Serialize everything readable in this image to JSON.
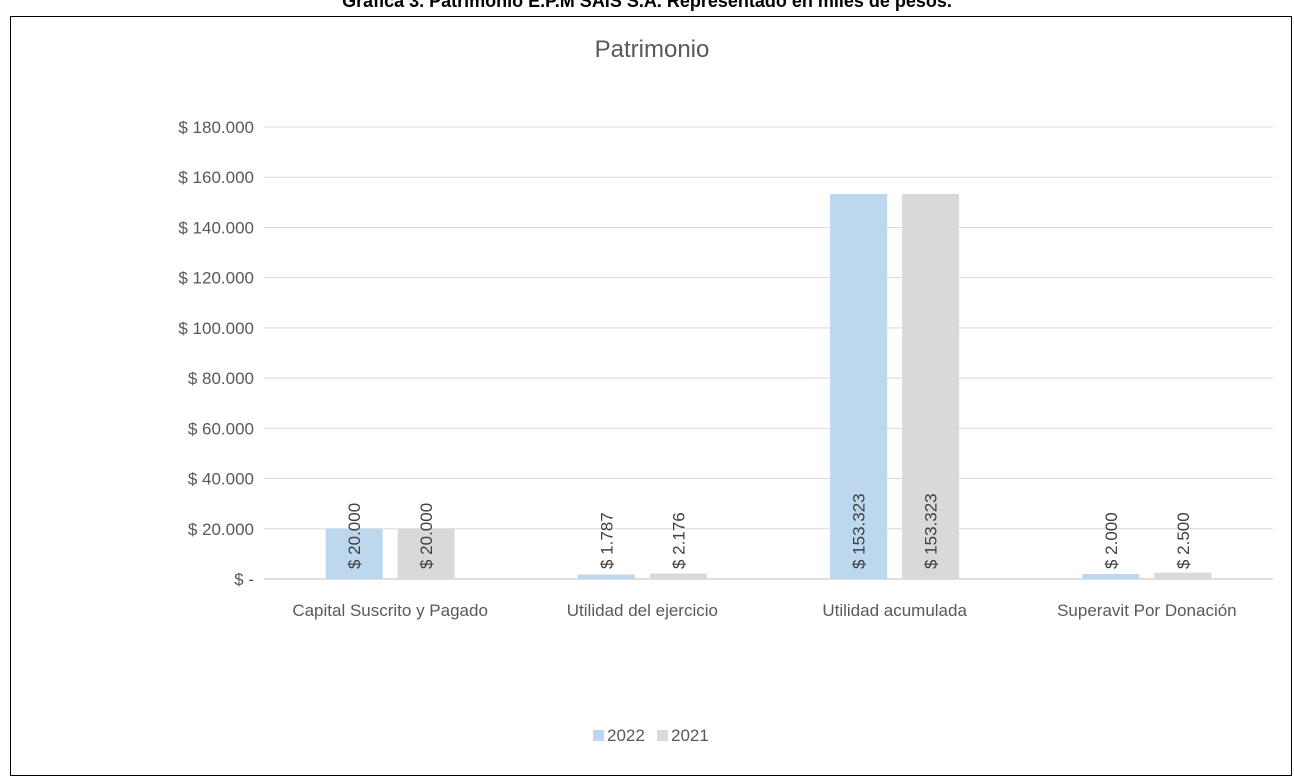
{
  "caption": "Gráfica 3. Patrimonio E.P.M SAIS S.A. Representado en miles de pesos.",
  "chart_data": {
    "type": "bar",
    "title": "Patrimonio",
    "categories": [
      "Capital Suscrito y Pagado",
      "Utilidad del ejercicio",
      "Utilidad acumulada",
      "Superavit Por Donación"
    ],
    "series": [
      {
        "name": "2022",
        "values": [
          20000,
          1787,
          153323,
          2000
        ],
        "labels": [
          "$ 20.000",
          "$ 1.787",
          "$ 153.323",
          "$ 2.000"
        ],
        "color": "#bdd7ee"
      },
      {
        "name": "2021",
        "values": [
          20000,
          2176,
          153323,
          2500
        ],
        "labels": [
          "$ 20.000",
          "$ 2.176",
          "$ 153.323",
          "$ 2.500"
        ],
        "color": "#d9d9d9"
      }
    ],
    "ylim": [
      0,
      180000
    ],
    "yticks": [
      0,
      20000,
      40000,
      60000,
      80000,
      100000,
      120000,
      140000,
      160000,
      180000
    ],
    "ytick_labels": [
      "$ -",
      "$ 20.000",
      "$ 40.000",
      "$ 60.000",
      "$ 80.000",
      "$ 100.000",
      "$ 120.000",
      "$ 140.000",
      "$ 160.000",
      "$ 180.000"
    ],
    "grid": true,
    "legend_position": "bottom",
    "gridline_color": "#d9d9d9",
    "axis_color": "#bfbfbf"
  }
}
